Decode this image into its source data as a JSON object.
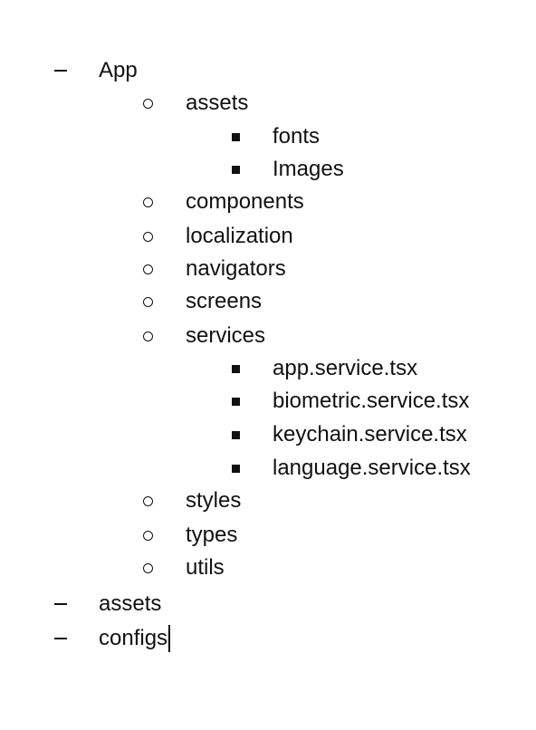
{
  "document": {
    "items": [
      {
        "level": 1,
        "marker": "dash",
        "text": "App"
      },
      {
        "level": 2,
        "marker": "circle",
        "text": "assets"
      },
      {
        "level": 3,
        "marker": "square",
        "text": "fonts"
      },
      {
        "level": 3,
        "marker": "square",
        "text": "Images"
      },
      {
        "level": 2,
        "marker": "circle",
        "text": "components"
      },
      {
        "level": 2,
        "marker": "circle",
        "text": "localization"
      },
      {
        "level": 2,
        "marker": "circle",
        "text": "navigators"
      },
      {
        "level": 2,
        "marker": "circle",
        "text": "screens"
      },
      {
        "level": 2,
        "marker": "circle",
        "text": "services"
      },
      {
        "level": 3,
        "marker": "square",
        "text": "app.service.tsx"
      },
      {
        "level": 3,
        "marker": "square",
        "text": "biometric.service.tsx"
      },
      {
        "level": 3,
        "marker": "square",
        "text": "keychain.service.tsx"
      },
      {
        "level": 3,
        "marker": "square",
        "text": "language.service.tsx"
      },
      {
        "level": 2,
        "marker": "circle",
        "text": "styles"
      },
      {
        "level": 2,
        "marker": "circle",
        "text": "types"
      },
      {
        "level": 2,
        "marker": "circle",
        "text": "utils"
      },
      {
        "level": 1,
        "marker": "dash",
        "text": "assets"
      },
      {
        "level": 1,
        "marker": "dash",
        "text": "configs"
      }
    ]
  }
}
